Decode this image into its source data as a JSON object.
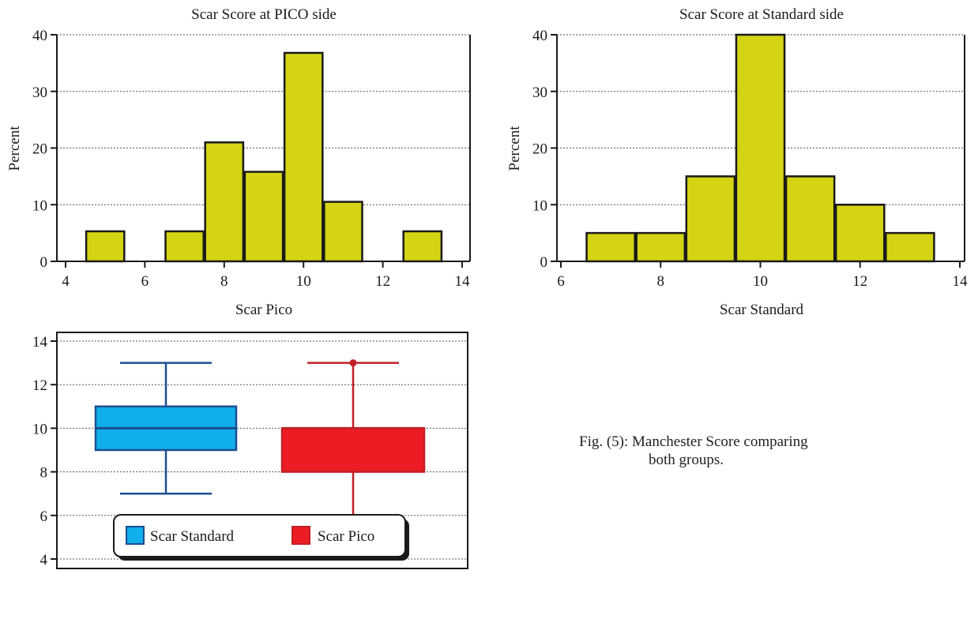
{
  "chart_data": [
    {
      "type": "bar",
      "title": "Scar Score at PICO side",
      "xlabel": "Scar Pico",
      "ylabel": "Percent",
      "xlim": [
        4,
        14
      ],
      "ylim": [
        0,
        40
      ],
      "xticks": [
        "4",
        "6",
        "8",
        "10",
        "12",
        "14"
      ],
      "yticks": [
        "0",
        "10",
        "20",
        "30",
        "40"
      ],
      "bin_centers": [
        5,
        7,
        8,
        9,
        10,
        11,
        13
      ],
      "values": [
        5.3,
        5.3,
        21,
        15.8,
        36.8,
        10.5,
        5.3
      ],
      "bar_color": "#d4d414",
      "grid": true
    },
    {
      "type": "bar",
      "title": "Scar Score at Standard side",
      "xlabel": "Scar Standard",
      "ylabel": "Percent",
      "xlim": [
        6,
        14
      ],
      "ylim": [
        0,
        40
      ],
      "xticks": [
        "6",
        "8",
        "10",
        "12",
        "14"
      ],
      "yticks": [
        "0",
        "10",
        "20",
        "30",
        "40"
      ],
      "bin_centers": [
        7,
        8,
        9,
        10,
        11,
        12,
        13
      ],
      "values": [
        5,
        5,
        15,
        40,
        15,
        10,
        5
      ],
      "bar_color": "#d4d414",
      "grid": true
    },
    {
      "type": "box",
      "ylim": [
        4,
        14
      ],
      "yticks": [
        "4",
        "6",
        "8",
        "10",
        "12",
        "14"
      ],
      "grid": true,
      "legend_position": "bottom",
      "series": [
        {
          "name": "Scar Standard",
          "min": 7,
          "q1": 9,
          "median": 10,
          "q3": 11,
          "max": 13,
          "outliers": [],
          "color": "#10aeea",
          "stroke": "#1a4f8f"
        },
        {
          "name": "Scar Pico",
          "min": 5,
          "q1": 8,
          "median": 10,
          "q3": 10,
          "max": 13,
          "outliers": [
            5,
            13
          ],
          "color": "#ed1c24",
          "stroke": "#c02025"
        }
      ]
    }
  ],
  "caption": {
    "line1": "Fig. (5): Manchester Score comparing",
    "line2": "both groups."
  }
}
